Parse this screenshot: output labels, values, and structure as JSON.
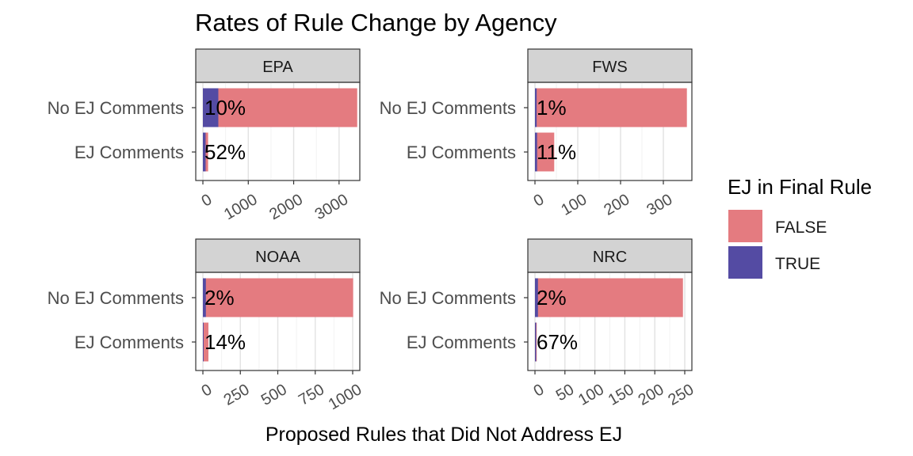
{
  "chart_data": {
    "type": "bar",
    "orientation": "horizontal",
    "stacked": true,
    "title": "Rates of Rule Change by Agency",
    "xlabel": "Proposed Rules that Did Not Address EJ",
    "ylabel": "",
    "categories": [
      "No EJ Comments",
      "EJ Comments"
    ],
    "legend": {
      "title": "EJ in Final Rule",
      "placement": "right",
      "entries": [
        {
          "label": "FALSE",
          "color": "#e47b80"
        },
        {
          "label": "TRUE",
          "color": "#544ba3"
        }
      ]
    },
    "grid": true,
    "panels": [
      {
        "name": "EPA",
        "xlim": [
          0,
          3300
        ],
        "ticks": [
          0,
          1000,
          2000,
          3000
        ],
        "tick_labels": [
          "0",
          "1000",
          "2000",
          "3000"
        ],
        "bars": [
          {
            "category": "No EJ Comments",
            "false": 3060,
            "true": 340,
            "label": "10%"
          },
          {
            "category": "EJ Comments",
            "false": 55,
            "true": 60,
            "label": "52%"
          }
        ]
      },
      {
        "name": "FWS",
        "xlim": [
          0,
          350
        ],
        "ticks": [
          0,
          100,
          200,
          300
        ],
        "tick_labels": [
          "0",
          "100",
          "200",
          "300"
        ],
        "bars": [
          {
            "category": "No EJ Comments",
            "false": 351,
            "true": 4,
            "label": "1%"
          },
          {
            "category": "EJ Comments",
            "false": 40,
            "true": 5,
            "label": "11%"
          }
        ]
      },
      {
        "name": "NOAA",
        "xlim": [
          0,
          1000
        ],
        "ticks": [
          0,
          250,
          500,
          750,
          1000
        ],
        "tick_labels": [
          "0",
          "250",
          "500",
          "750",
          "1000"
        ],
        "bars": [
          {
            "category": "No EJ Comments",
            "false": 983,
            "true": 20,
            "label": "2%"
          },
          {
            "category": "EJ Comments",
            "false": 32,
            "true": 5,
            "label": "14%"
          }
        ]
      },
      {
        "name": "NRC",
        "xlim": [
          0,
          250
        ],
        "ticks": [
          0,
          50,
          100,
          150,
          200,
          250
        ],
        "tick_labels": [
          "0",
          "50",
          "100",
          "150",
          "200",
          "250"
        ],
        "bars": [
          {
            "category": "No EJ Comments",
            "false": 242,
            "true": 5,
            "label": "2%"
          },
          {
            "category": "EJ Comments",
            "false": 1,
            "true": 2,
            "label": "67%"
          }
        ]
      }
    ]
  }
}
